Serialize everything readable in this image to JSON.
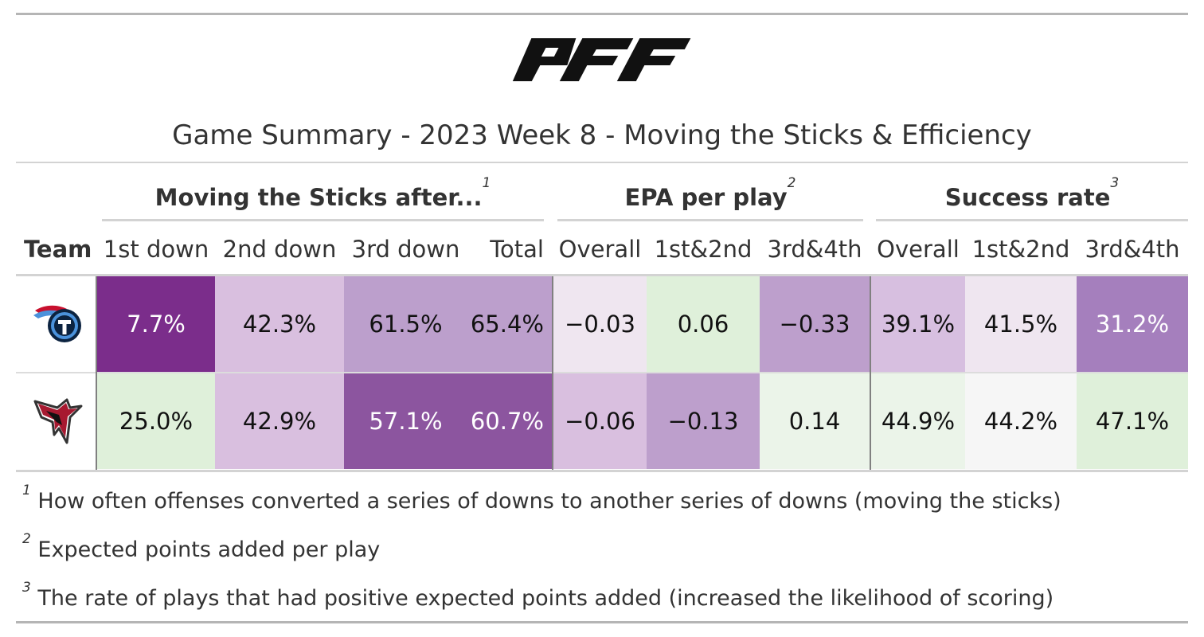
{
  "logo_text": "PFF",
  "title": "Game Summary - 2023 Week 8 - Moving the Sticks & Efficiency",
  "spanners": [
    {
      "label": "Moving the Sticks after...",
      "note": "1"
    },
    {
      "label": "EPA per play",
      "note": "2"
    },
    {
      "label": "Success rate",
      "note": "3"
    }
  ],
  "columns": [
    "Team",
    "1st down",
    "2nd down",
    "3rd down",
    "Total",
    "Overall",
    "1st&2nd",
    "3rd&4th",
    "Overall",
    "1st&2nd",
    "3rd&4th"
  ],
  "rows": [
    {
      "team_icon": "titans-logo-icon",
      "cells": [
        {
          "text": "7.7%",
          "bg": "#7b2d8b",
          "fg": "#ffffff"
        },
        {
          "text": "42.3%",
          "bg": "#d9bfdf",
          "fg": "#111111"
        },
        {
          "text": "61.5%",
          "bg": "#bc9fcc",
          "fg": "#111111"
        },
        {
          "text": "65.4%",
          "bg": "#bc9fcc",
          "fg": "#111111"
        },
        {
          "text": "−0.03",
          "bg": "#efe6f0",
          "fg": "#111111"
        },
        {
          "text": "0.06",
          "bg": "#dff0da",
          "fg": "#111111"
        },
        {
          "text": "−0.33",
          "bg": "#bd9fcc",
          "fg": "#111111"
        },
        {
          "text": "39.1%",
          "bg": "#d7bfe0",
          "fg": "#111111"
        },
        {
          "text": "41.5%",
          "bg": "#efe6f0",
          "fg": "#111111"
        },
        {
          "text": "31.2%",
          "bg": "#a57fbd",
          "fg": "#ffffff"
        }
      ]
    },
    {
      "team_icon": "falcons-logo-icon",
      "cells": [
        {
          "text": "25.0%",
          "bg": "#dff0da",
          "fg": "#111111"
        },
        {
          "text": "42.9%",
          "bg": "#d9bfdf",
          "fg": "#111111"
        },
        {
          "text": "57.1%",
          "bg": "#8c559f",
          "fg": "#ffffff"
        },
        {
          "text": "60.7%",
          "bg": "#8c559f",
          "fg": "#ffffff"
        },
        {
          "text": "−0.06",
          "bg": "#d9bfdf",
          "fg": "#111111"
        },
        {
          "text": "−0.13",
          "bg": "#bd9fcc",
          "fg": "#111111"
        },
        {
          "text": "0.14",
          "bg": "#ebf4e9",
          "fg": "#111111"
        },
        {
          "text": "44.9%",
          "bg": "#ebf4e9",
          "fg": "#111111"
        },
        {
          "text": "44.2%",
          "bg": "#f6f6f6",
          "fg": "#111111"
        },
        {
          "text": "47.1%",
          "bg": "#dff0da",
          "fg": "#111111"
        }
      ]
    }
  ],
  "footnotes": [
    {
      "mark": "1",
      "text": "How often offenses converted a series of downs to another series of downs (moving the sticks)"
    },
    {
      "mark": "2",
      "text": "Expected points added per play"
    },
    {
      "mark": "3",
      "text": "The rate of plays that had positive expected points added (increased the likelihood of scoring)"
    }
  ]
}
